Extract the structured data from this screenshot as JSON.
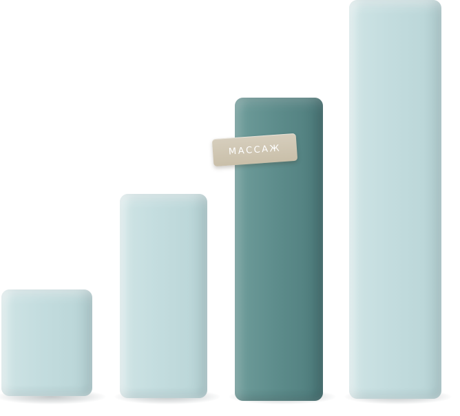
{
  "tag": {
    "label": "МАССАЖ"
  },
  "colors": {
    "bar_light": "#c4dddf",
    "bar_dark": "#5e8d8c",
    "tag": "#cfc6b2"
  },
  "bars": [
    {
      "tone": "light",
      "highlighted": false
    },
    {
      "tone": "light",
      "highlighted": false
    },
    {
      "tone": "dark",
      "highlighted": true
    },
    {
      "tone": "light",
      "highlighted": false
    }
  ]
}
